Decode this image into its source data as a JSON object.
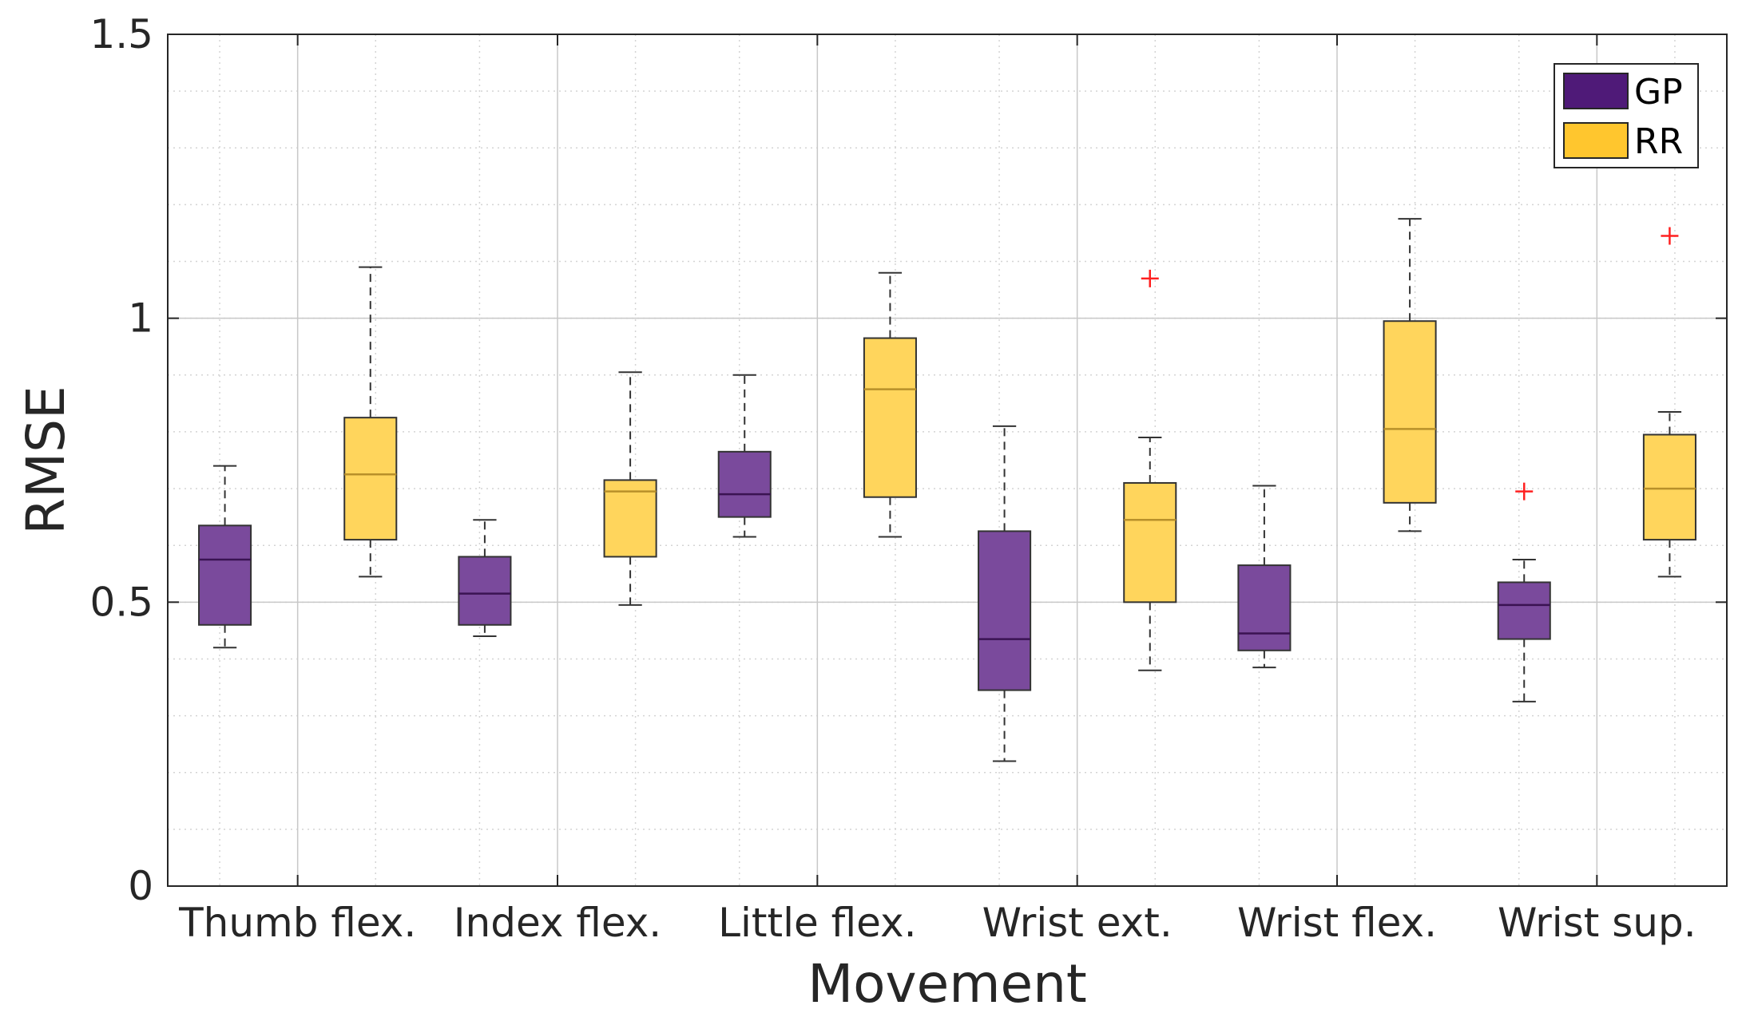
{
  "chart_data": {
    "type": "boxplot",
    "title": "",
    "xlabel": "Movement",
    "ylabel": "RMSE",
    "ylim": [
      0,
      1.5
    ],
    "yticks": [
      {
        "value": 0,
        "label": "0"
      },
      {
        "value": 0.5,
        "label": "0.5"
      },
      {
        "value": 1,
        "label": "1"
      },
      {
        "value": 1.5,
        "label": "1.5"
      }
    ],
    "grid": true,
    "minor_grid": true,
    "legend_position": "top-right",
    "categories": [
      "Thumb flex.",
      "Index flex.",
      "Little flex.",
      "Wrist ext.",
      "Wrist flex.",
      "Wrist sup."
    ],
    "series": [
      {
        "name": "GP",
        "color": "#5b1d82",
        "fill": "#7a4a9c",
        "boxes": [
          {
            "whisker_low": 0.42,
            "q1": 0.46,
            "median": 0.575,
            "q3": 0.635,
            "whisker_high": 0.74,
            "outliers": []
          },
          {
            "whisker_low": 0.44,
            "q1": 0.46,
            "median": 0.515,
            "q3": 0.58,
            "whisker_high": 0.645,
            "outliers": []
          },
          {
            "whisker_low": 0.615,
            "q1": 0.65,
            "median": 0.69,
            "q3": 0.765,
            "whisker_high": 0.9,
            "outliers": []
          },
          {
            "whisker_low": 0.22,
            "q1": 0.345,
            "median": 0.435,
            "q3": 0.625,
            "whisker_high": 0.81,
            "outliers": []
          },
          {
            "whisker_low": 0.385,
            "q1": 0.415,
            "median": 0.445,
            "q3": 0.565,
            "whisker_high": 0.705,
            "outliers": []
          },
          {
            "whisker_low": 0.325,
            "q1": 0.435,
            "median": 0.495,
            "q3": 0.535,
            "whisker_high": 0.575,
            "outliers": [
              0.695
            ]
          }
        ]
      },
      {
        "name": "RR",
        "color": "#f5b800",
        "fill": "#ffd55c",
        "boxes": [
          {
            "whisker_low": 0.545,
            "q1": 0.61,
            "median": 0.725,
            "q3": 0.825,
            "whisker_high": 1.09,
            "outliers": []
          },
          {
            "whisker_low": 0.495,
            "q1": 0.58,
            "median": 0.695,
            "q3": 0.715,
            "whisker_high": 0.905,
            "outliers": []
          },
          {
            "whisker_low": 0.615,
            "q1": 0.685,
            "median": 0.875,
            "q3": 0.965,
            "whisker_high": 1.08,
            "outliers": []
          },
          {
            "whisker_low": 0.38,
            "q1": 0.5,
            "median": 0.645,
            "q3": 0.71,
            "whisker_high": 0.79,
            "outliers": [
              1.07
            ]
          },
          {
            "whisker_low": 0.625,
            "q1": 0.675,
            "median": 0.805,
            "q3": 0.995,
            "whisker_high": 1.175,
            "outliers": []
          },
          {
            "whisker_low": 0.545,
            "q1": 0.61,
            "median": 0.7,
            "q3": 0.795,
            "whisker_high": 0.835,
            "outliers": [
              1.145
            ]
          }
        ]
      }
    ]
  }
}
